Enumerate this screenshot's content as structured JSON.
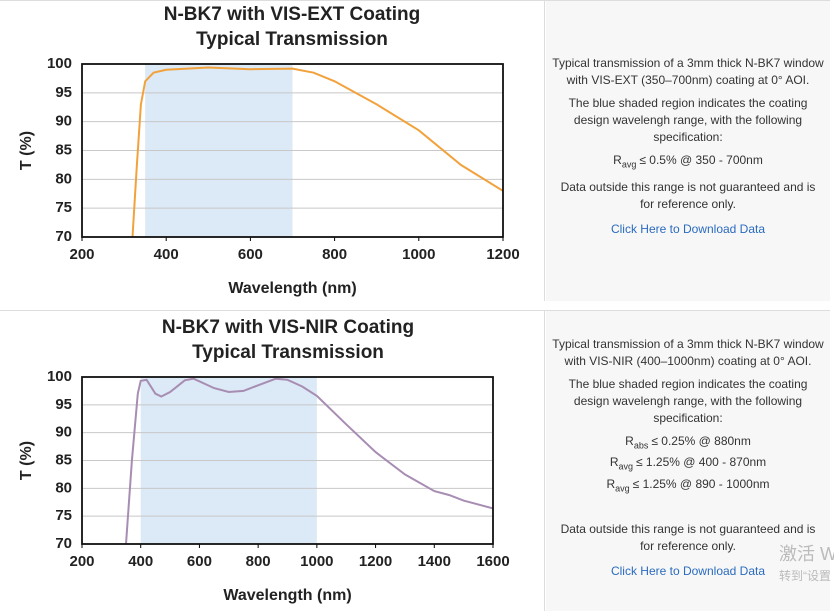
{
  "chart_data": [
    {
      "type": "line",
      "title": "N-BK7 with VIS-EXT Coating",
      "subtitle": "Typical Transmission",
      "x_label": "Wavelength (nm)",
      "y_label": "T (%)",
      "xlim": [
        200,
        1200
      ],
      "xticks": [
        200,
        400,
        600,
        800,
        1000,
        1200
      ],
      "ylim": [
        70,
        100
      ],
      "yticks": [
        70,
        75,
        80,
        85,
        90,
        95,
        100
      ],
      "grid": true,
      "shade": [
        350,
        700
      ],
      "shade_color": "#dce9f6",
      "x": [
        320,
        330,
        340,
        350,
        370,
        400,
        500,
        600,
        700,
        750,
        800,
        900,
        1000,
        1100,
        1200
      ],
      "series": [
        {
          "color": "#f2a23c",
          "values": [
            70,
            82,
            93,
            97,
            98.5,
            99,
            99.4,
            99.1,
            99.2,
            98.5,
            97,
            93,
            88.5,
            82.5,
            78
          ]
        }
      ]
    },
    {
      "type": "line",
      "title": "N-BK7 with VIS-NIR Coating",
      "subtitle": "Typical Transmission",
      "x_label": "Wavelength (nm)",
      "y_label": "T (%)",
      "xlim": [
        200,
        1600
      ],
      "xticks": [
        200,
        400,
        600,
        800,
        1000,
        1200,
        1400,
        1600
      ],
      "ylim": [
        70,
        100
      ],
      "yticks": [
        70,
        75,
        80,
        85,
        90,
        95,
        100
      ],
      "grid": true,
      "shade": [
        400,
        1000
      ],
      "shade_color": "#dce9f6",
      "x": [
        350,
        370,
        390,
        400,
        420,
        450,
        470,
        500,
        550,
        580,
        650,
        700,
        750,
        800,
        860,
        900,
        950,
        1000,
        1100,
        1200,
        1300,
        1400,
        1450,
        1500,
        1600
      ],
      "series": [
        {
          "color": "#a88db3",
          "values": [
            70,
            85,
            97,
            99.3,
            99.5,
            97,
            96.5,
            97.3,
            99.4,
            99.7,
            98,
            97.3,
            97.5,
            98.5,
            99.7,
            99.5,
            98.3,
            96.6,
            91.5,
            86.5,
            82.5,
            79.5,
            78.8,
            77.8,
            76.4
          ]
        }
      ]
    }
  ],
  "descriptions": [
    {
      "paragraphs": [
        "Typical transmission of a 3mm thick N-BK7 window with VIS-EXT (350–700nm) coating at 0° AOI.",
        "The blue shaded region indicates the coating design wavelengh range, with the following specification:"
      ],
      "spec": [
        {
          "symbol": "R",
          "sub": "avg",
          "text": "≤ 0.5% @ 350 - 700nm"
        }
      ],
      "note": "Data outside this range is not guaranteed and is for reference only.",
      "link": "Click Here to Download Data"
    },
    {
      "paragraphs": [
        "Typical transmission of a 3mm thick N-BK7 window with VIS-NIR (400–1000nm) coating at 0° AOI.",
        "The blue shaded region indicates the coating design wavelengh range, with the following specification:"
      ],
      "spec": [
        {
          "symbol": "R",
          "sub": "abs",
          "text": "≤ 0.25% @ 880nm"
        },
        {
          "symbol": "R",
          "sub": "avg",
          "text": "≤ 1.25% @ 400 - 870nm"
        },
        {
          "symbol": "R",
          "sub": "avg",
          "text": "≤ 1.25% @ 890 - 1000nm"
        }
      ],
      "note": "Data outside this range is not guaranteed and is for reference only.",
      "link": "Click Here to Download Data"
    }
  ],
  "watermark": [
    "激活 W",
    "转到“设置"
  ]
}
